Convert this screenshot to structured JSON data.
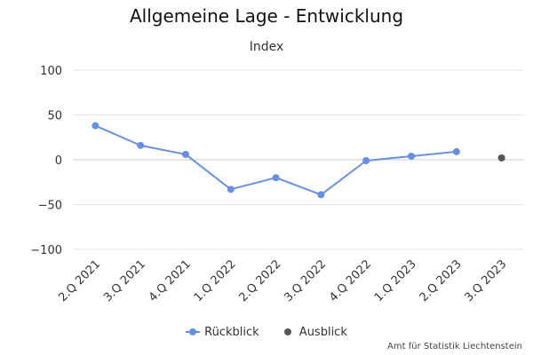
{
  "chart_data": {
    "type": "line",
    "title": "Allgemeine Lage - Entwicklung",
    "subtitle": "Index",
    "categories": [
      "2.Q 2021",
      "3.Q 2021",
      "4.Q 2021",
      "1.Q 2022",
      "2.Q 2022",
      "3.Q 2022",
      "4.Q 2022",
      "1.Q 2023",
      "2.Q 2023",
      "3.Q 2023"
    ],
    "series": [
      {
        "name": "Rückblick",
        "color": "#6690e8",
        "values": [
          38,
          16,
          6,
          -33,
          -20,
          -39,
          -1,
          4,
          9,
          null
        ]
      },
      {
        "name": "Ausblick",
        "color": "#555555",
        "values": [
          null,
          null,
          null,
          null,
          null,
          null,
          null,
          null,
          null,
          2
        ]
      }
    ],
    "yticks": [
      100,
      50,
      0,
      -50,
      -100
    ],
    "ylim": [
      -100,
      100
    ],
    "grid": true,
    "legend": "bottom"
  },
  "credits": "Amt für Statistik Liechtenstein"
}
